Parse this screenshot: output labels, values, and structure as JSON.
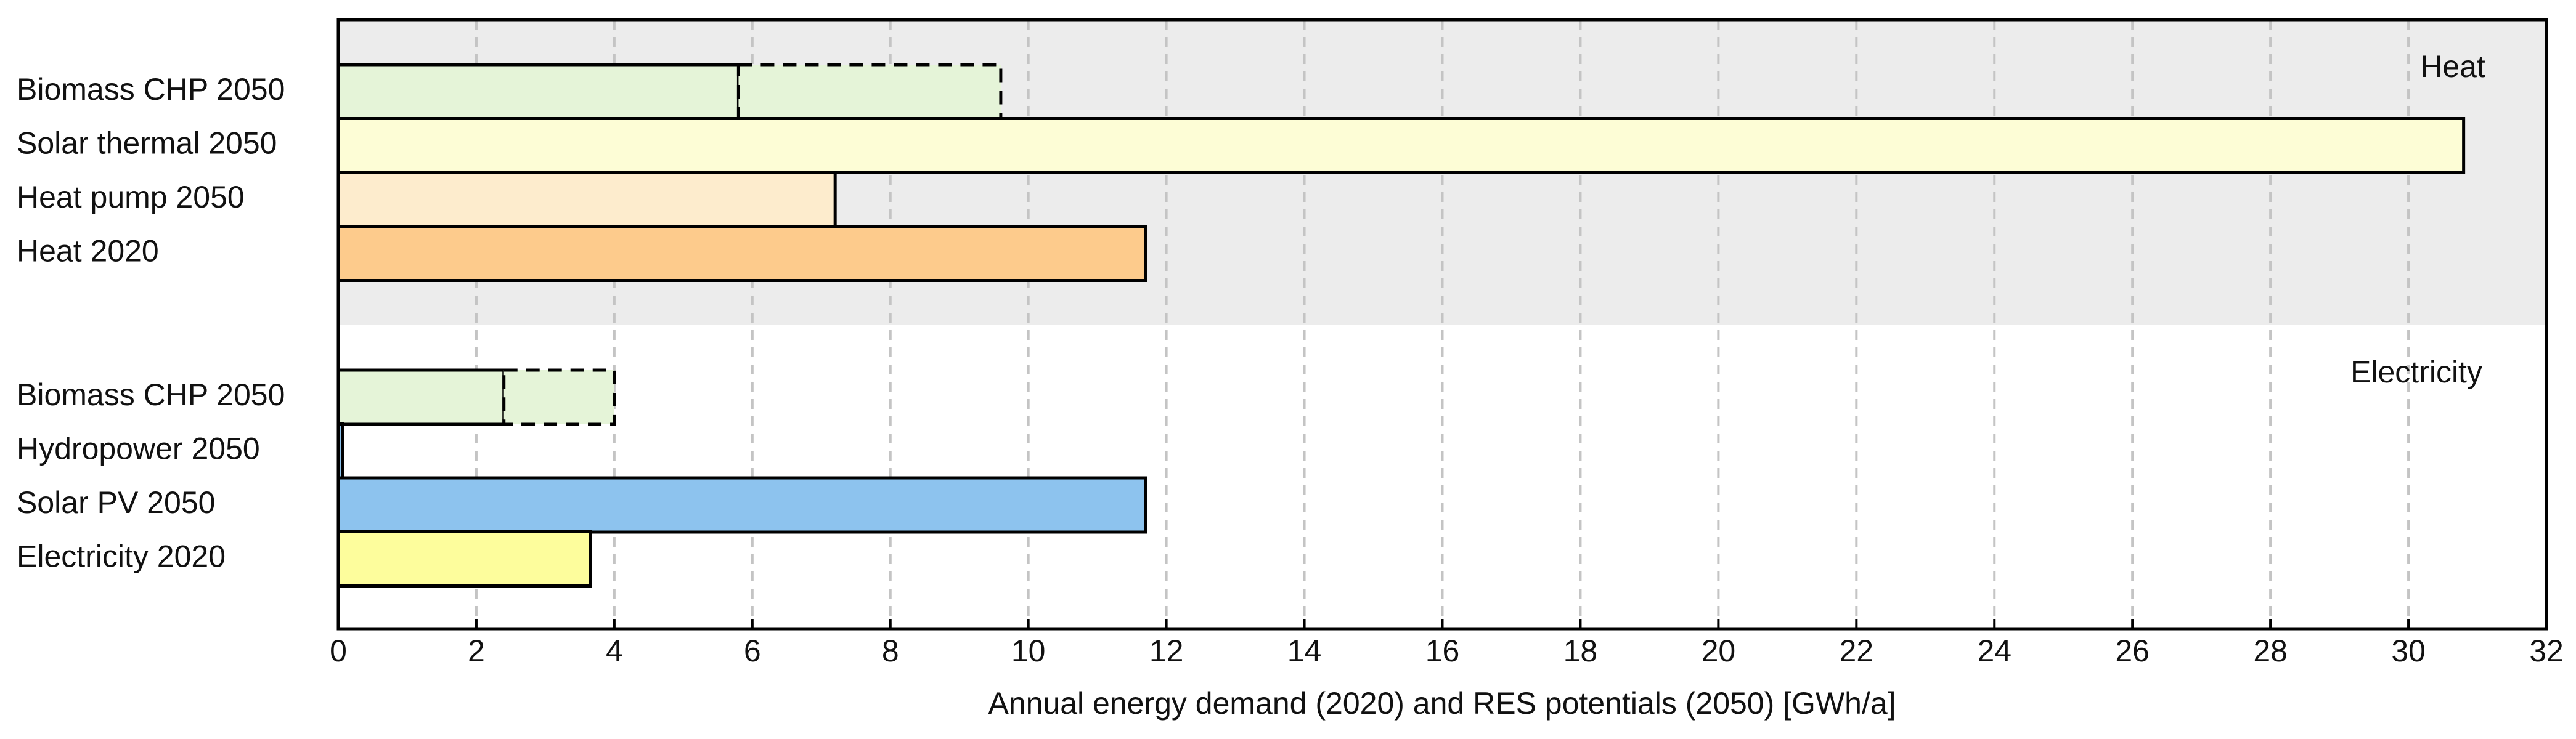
{
  "chart_data": {
    "type": "barh",
    "xlabel": "Annual energy demand (2020) and RES potentials (2050) [GWh/a]",
    "xlim": [
      0,
      32
    ],
    "xticks": [
      0,
      2,
      4,
      6,
      8,
      10,
      12,
      14,
      16,
      18,
      20,
      22,
      24,
      26,
      28,
      30,
      32
    ],
    "grid": true,
    "groups": [
      {
        "name": "Heat",
        "background": "#ececec",
        "bars": [
          {
            "label": "Biomass CHP 2050",
            "value": 5.8,
            "upper_range": 3.8,
            "color": "#e5f4d8"
          },
          {
            "label": "Solar thermal 2050",
            "value": 30.8,
            "color": "#fdfdd6"
          },
          {
            "label": "Heat pump 2050",
            "value": 7.2,
            "color": "#fdeccd"
          },
          {
            "label": "Heat 2020",
            "value": 11.7,
            "color": "#fdcb8c"
          }
        ]
      },
      {
        "name": "Electricity",
        "background": "#ffffff",
        "bars": [
          {
            "label": "Biomass CHP 2050",
            "value": 2.4,
            "upper_range": 1.6,
            "color": "#e5f4d8"
          },
          {
            "label": "Hydropower 2050",
            "value": 0.06,
            "color": "#8dc3ee"
          },
          {
            "label": "Solar PV 2050",
            "value": 11.7,
            "color": "#8dc3ee"
          },
          {
            "label": "Electricity 2020",
            "value": 3.65,
            "color": "#fdfd9c"
          }
        ]
      }
    ]
  }
}
